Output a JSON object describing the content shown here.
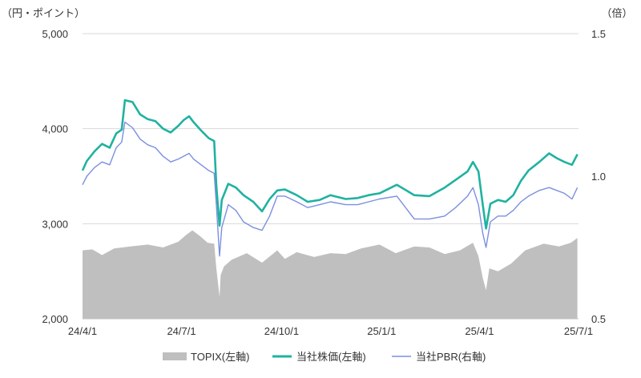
{
  "chart_data": {
    "type": "area+line",
    "left_axis": {
      "unit_label": "（円・ポイント）",
      "min": 2000,
      "max": 5000,
      "ticks": [
        {
          "value": 2000,
          "label": "2,000"
        },
        {
          "value": 3000,
          "label": "3,000"
        },
        {
          "value": 4000,
          "label": "4,000"
        },
        {
          "value": 5000,
          "label": "5,000"
        }
      ]
    },
    "right_axis": {
      "unit_label": "（倍）",
      "min": 0.5,
      "max": 1.5,
      "ticks": [
        {
          "value": 0.5,
          "label": "0.5"
        },
        {
          "value": 1.0,
          "label": "1.0"
        },
        {
          "value": 1.5,
          "label": "1.5"
        }
      ]
    },
    "x_axis": {
      "start": "2024-04-01",
      "end": "2025-07-01",
      "ticks": [
        {
          "date": "2024-04-01",
          "label": "24/4/1"
        },
        {
          "date": "2024-07-01",
          "label": "24/7/1"
        },
        {
          "date": "2024-10-01",
          "label": "24/10/1"
        },
        {
          "date": "2025-01-01",
          "label": "25/1/1"
        },
        {
          "date": "2025-04-01",
          "label": "25/4/1"
        },
        {
          "date": "2025-07-01",
          "label": "25/7/1"
        }
      ]
    },
    "grid": true,
    "legend_position": "bottom-center",
    "series": [
      {
        "name": "TOPIX(左軸)",
        "kind": "area",
        "axis": "left",
        "color": "#bfbfbf",
        "points": [
          [
            "2024-04-01",
            2720
          ],
          [
            "2024-04-10",
            2730
          ],
          [
            "2024-04-19",
            2670
          ],
          [
            "2024-04-30",
            2740
          ],
          [
            "2024-05-15",
            2760
          ],
          [
            "2024-05-31",
            2780
          ],
          [
            "2024-06-14",
            2750
          ],
          [
            "2024-06-28",
            2810
          ],
          [
            "2024-07-05",
            2880
          ],
          [
            "2024-07-11",
            2930
          ],
          [
            "2024-07-18",
            2870
          ],
          [
            "2024-07-25",
            2800
          ],
          [
            "2024-07-31",
            2790
          ],
          [
            "2024-08-02",
            2530
          ],
          [
            "2024-08-05",
            2230
          ],
          [
            "2024-08-06",
            2460
          ],
          [
            "2024-08-09",
            2550
          ],
          [
            "2024-08-16",
            2620
          ],
          [
            "2024-08-30",
            2690
          ],
          [
            "2024-09-13",
            2590
          ],
          [
            "2024-09-27",
            2720
          ],
          [
            "2024-10-04",
            2630
          ],
          [
            "2024-10-15",
            2700
          ],
          [
            "2024-10-31",
            2650
          ],
          [
            "2024-11-15",
            2690
          ],
          [
            "2024-11-29",
            2680
          ],
          [
            "2024-12-13",
            2740
          ],
          [
            "2024-12-30",
            2780
          ],
          [
            "2025-01-14",
            2690
          ],
          [
            "2025-01-31",
            2760
          ],
          [
            "2025-02-14",
            2750
          ],
          [
            "2025-02-28",
            2680
          ],
          [
            "2025-03-14",
            2720
          ],
          [
            "2025-03-26",
            2800
          ],
          [
            "2025-03-31",
            2660
          ],
          [
            "2025-04-04",
            2430
          ],
          [
            "2025-04-07",
            2300
          ],
          [
            "2025-04-10",
            2530
          ],
          [
            "2025-04-18",
            2500
          ],
          [
            "2025-04-30",
            2580
          ],
          [
            "2025-05-13",
            2720
          ],
          [
            "2025-05-30",
            2790
          ],
          [
            "2025-06-13",
            2760
          ],
          [
            "2025-06-24",
            2800
          ],
          [
            "2025-06-30",
            2850
          ]
        ]
      },
      {
        "name": "当社株価(左軸)",
        "kind": "line",
        "axis": "left",
        "color": "#20b2a0",
        "points": [
          [
            "2024-04-01",
            3560
          ],
          [
            "2024-04-05",
            3660
          ],
          [
            "2024-04-12",
            3760
          ],
          [
            "2024-04-19",
            3840
          ],
          [
            "2024-04-26",
            3800
          ],
          [
            "2024-05-02",
            3950
          ],
          [
            "2024-05-07",
            3990
          ],
          [
            "2024-05-10",
            4300
          ],
          [
            "2024-05-17",
            4280
          ],
          [
            "2024-05-24",
            4150
          ],
          [
            "2024-05-31",
            4100
          ],
          [
            "2024-06-07",
            4080
          ],
          [
            "2024-06-14",
            4000
          ],
          [
            "2024-06-21",
            3960
          ],
          [
            "2024-06-28",
            4030
          ],
          [
            "2024-07-03",
            4090
          ],
          [
            "2024-07-08",
            4130
          ],
          [
            "2024-07-12",
            4070
          ],
          [
            "2024-07-19",
            3980
          ],
          [
            "2024-07-26",
            3900
          ],
          [
            "2024-07-31",
            3870
          ],
          [
            "2024-08-02",
            3400
          ],
          [
            "2024-08-05",
            2980
          ],
          [
            "2024-08-07",
            3250
          ],
          [
            "2024-08-13",
            3420
          ],
          [
            "2024-08-20",
            3380
          ],
          [
            "2024-08-27",
            3300
          ],
          [
            "2024-09-05",
            3230
          ],
          [
            "2024-09-13",
            3130
          ],
          [
            "2024-09-20",
            3260
          ],
          [
            "2024-09-27",
            3350
          ],
          [
            "2024-10-04",
            3360
          ],
          [
            "2024-10-15",
            3300
          ],
          [
            "2024-10-25",
            3230
          ],
          [
            "2024-11-05",
            3250
          ],
          [
            "2024-11-15",
            3300
          ],
          [
            "2024-11-29",
            3260
          ],
          [
            "2024-12-10",
            3270
          ],
          [
            "2024-12-20",
            3300
          ],
          [
            "2024-12-30",
            3320
          ],
          [
            "2025-01-15",
            3410
          ],
          [
            "2025-01-31",
            3300
          ],
          [
            "2025-02-14",
            3290
          ],
          [
            "2025-02-28",
            3380
          ],
          [
            "2025-03-10",
            3460
          ],
          [
            "2025-03-21",
            3550
          ],
          [
            "2025-03-26",
            3650
          ],
          [
            "2025-03-31",
            3550
          ],
          [
            "2025-04-04",
            3200
          ],
          [
            "2025-04-07",
            2950
          ],
          [
            "2025-04-11",
            3210
          ],
          [
            "2025-04-18",
            3250
          ],
          [
            "2025-04-25",
            3230
          ],
          [
            "2025-05-02",
            3300
          ],
          [
            "2025-05-09",
            3450
          ],
          [
            "2025-05-16",
            3560
          ],
          [
            "2025-05-26",
            3650
          ],
          [
            "2025-06-04",
            3740
          ],
          [
            "2025-06-11",
            3690
          ],
          [
            "2025-06-18",
            3650
          ],
          [
            "2025-06-25",
            3620
          ],
          [
            "2025-06-30",
            3730
          ]
        ]
      },
      {
        "name": "当社PBR(右軸)",
        "kind": "line",
        "axis": "right",
        "color": "#7b8fe0",
        "points": [
          [
            "2024-04-01",
            0.97
          ],
          [
            "2024-04-05",
            1.0
          ],
          [
            "2024-04-12",
            1.03
          ],
          [
            "2024-04-19",
            1.05
          ],
          [
            "2024-04-26",
            1.04
          ],
          [
            "2024-05-02",
            1.1
          ],
          [
            "2024-05-07",
            1.12
          ],
          [
            "2024-05-10",
            1.19
          ],
          [
            "2024-05-17",
            1.17
          ],
          [
            "2024-05-24",
            1.13
          ],
          [
            "2024-05-31",
            1.11
          ],
          [
            "2024-06-07",
            1.1
          ],
          [
            "2024-06-14",
            1.07
          ],
          [
            "2024-06-21",
            1.05
          ],
          [
            "2024-06-28",
            1.06
          ],
          [
            "2024-07-03",
            1.07
          ],
          [
            "2024-07-08",
            1.08
          ],
          [
            "2024-07-12",
            1.06
          ],
          [
            "2024-07-19",
            1.04
          ],
          [
            "2024-07-26",
            1.02
          ],
          [
            "2024-07-31",
            1.01
          ],
          [
            "2024-08-02",
            0.9
          ],
          [
            "2024-08-05",
            0.72
          ],
          [
            "2024-08-07",
            0.82
          ],
          [
            "2024-08-13",
            0.9
          ],
          [
            "2024-08-20",
            0.88
          ],
          [
            "2024-08-27",
            0.84
          ],
          [
            "2024-09-05",
            0.82
          ],
          [
            "2024-09-13",
            0.81
          ],
          [
            "2024-09-20",
            0.86
          ],
          [
            "2024-09-27",
            0.93
          ],
          [
            "2024-10-04",
            0.93
          ],
          [
            "2024-10-15",
            0.91
          ],
          [
            "2024-10-25",
            0.89
          ],
          [
            "2024-11-05",
            0.9
          ],
          [
            "2024-11-15",
            0.91
          ],
          [
            "2024-11-29",
            0.9
          ],
          [
            "2024-12-10",
            0.9
          ],
          [
            "2024-12-20",
            0.91
          ],
          [
            "2024-12-30",
            0.92
          ],
          [
            "2025-01-15",
            0.93
          ],
          [
            "2025-01-31",
            0.85
          ],
          [
            "2025-02-14",
            0.85
          ],
          [
            "2025-02-28",
            0.86
          ],
          [
            "2025-03-10",
            0.89
          ],
          [
            "2025-03-21",
            0.93
          ],
          [
            "2025-03-26",
            0.96
          ],
          [
            "2025-03-31",
            0.9
          ],
          [
            "2025-04-04",
            0.8
          ],
          [
            "2025-04-07",
            0.75
          ],
          [
            "2025-04-11",
            0.84
          ],
          [
            "2025-04-18",
            0.86
          ],
          [
            "2025-04-25",
            0.86
          ],
          [
            "2025-05-02",
            0.88
          ],
          [
            "2025-05-09",
            0.91
          ],
          [
            "2025-05-16",
            0.93
          ],
          [
            "2025-05-26",
            0.95
          ],
          [
            "2025-06-04",
            0.96
          ],
          [
            "2025-06-11",
            0.95
          ],
          [
            "2025-06-18",
            0.94
          ],
          [
            "2025-06-25",
            0.92
          ],
          [
            "2025-06-30",
            0.96
          ]
        ]
      }
    ]
  }
}
